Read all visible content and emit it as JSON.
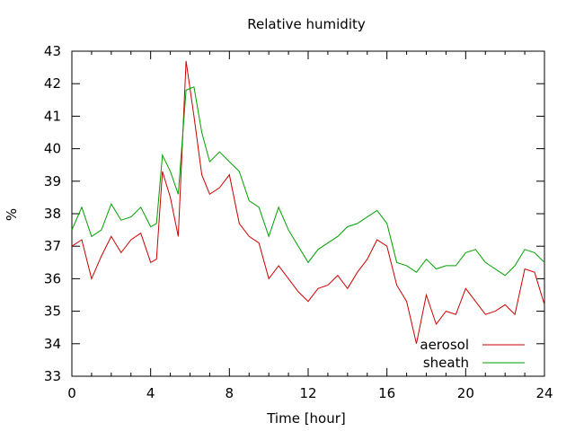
{
  "chart_data": {
    "type": "line",
    "title": "Relative humidity",
    "xlabel": "Time [hour]",
    "ylabel": "%",
    "xlim": [
      0,
      24
    ],
    "ylim": [
      33,
      43
    ],
    "x_ticks": [
      0,
      4,
      8,
      12,
      16,
      20,
      24
    ],
    "y_ticks": [
      33,
      34,
      35,
      36,
      37,
      38,
      39,
      40,
      41,
      42,
      43
    ],
    "grid": false,
    "legend_position": "bottom-right",
    "series": [
      {
        "name": "aerosol",
        "color": "#cc0000",
        "points": [
          [
            0,
            37.0
          ],
          [
            0.5,
            37.2
          ],
          [
            1,
            36.0
          ],
          [
            1.5,
            36.7
          ],
          [
            2,
            37.3
          ],
          [
            2.5,
            36.8
          ],
          [
            3,
            37.2
          ],
          [
            3.5,
            37.4
          ],
          [
            4,
            36.5
          ],
          [
            4.3,
            36.6
          ],
          [
            4.6,
            39.3
          ],
          [
            5,
            38.5
          ],
          [
            5.4,
            37.3
          ],
          [
            5.8,
            42.7
          ],
          [
            6.2,
            41.0
          ],
          [
            6.6,
            39.2
          ],
          [
            7,
            38.6
          ],
          [
            7.5,
            38.8
          ],
          [
            8,
            39.2
          ],
          [
            8.5,
            37.7
          ],
          [
            9,
            37.3
          ],
          [
            9.5,
            37.1
          ],
          [
            10,
            36.0
          ],
          [
            10.5,
            36.4
          ],
          [
            11,
            36.0
          ],
          [
            11.5,
            35.6
          ],
          [
            12,
            35.3
          ],
          [
            12.5,
            35.7
          ],
          [
            13,
            35.8
          ],
          [
            13.5,
            36.1
          ],
          [
            14,
            35.7
          ],
          [
            14.5,
            36.2
          ],
          [
            15,
            36.6
          ],
          [
            15.5,
            37.2
          ],
          [
            16,
            37.0
          ],
          [
            16.5,
            35.8
          ],
          [
            17,
            35.3
          ],
          [
            17.5,
            34.0
          ],
          [
            18,
            35.5
          ],
          [
            18.5,
            34.6
          ],
          [
            19,
            35.0
          ],
          [
            19.5,
            34.9
          ],
          [
            20,
            35.7
          ],
          [
            20.5,
            35.3
          ],
          [
            21,
            34.9
          ],
          [
            21.5,
            35.0
          ],
          [
            22,
            35.2
          ],
          [
            22.5,
            34.9
          ],
          [
            23,
            36.3
          ],
          [
            23.5,
            36.2
          ],
          [
            24,
            35.2
          ]
        ]
      },
      {
        "name": "sheath",
        "color": "#00a000",
        "points": [
          [
            0,
            37.5
          ],
          [
            0.5,
            38.2
          ],
          [
            1,
            37.3
          ],
          [
            1.5,
            37.5
          ],
          [
            2,
            38.3
          ],
          [
            2.5,
            37.8
          ],
          [
            3,
            37.9
          ],
          [
            3.5,
            38.2
          ],
          [
            4,
            37.6
          ],
          [
            4.3,
            37.7
          ],
          [
            4.6,
            39.8
          ],
          [
            5,
            39.3
          ],
          [
            5.4,
            38.6
          ],
          [
            5.8,
            41.8
          ],
          [
            6.2,
            41.9
          ],
          [
            6.6,
            40.5
          ],
          [
            7,
            39.6
          ],
          [
            7.5,
            39.9
          ],
          [
            8,
            39.6
          ],
          [
            8.5,
            39.3
          ],
          [
            9,
            38.4
          ],
          [
            9.5,
            38.2
          ],
          [
            10,
            37.3
          ],
          [
            10.5,
            38.2
          ],
          [
            11,
            37.5
          ],
          [
            11.5,
            37.0
          ],
          [
            12,
            36.5
          ],
          [
            12.5,
            36.9
          ],
          [
            13,
            37.1
          ],
          [
            13.5,
            37.3
          ],
          [
            14,
            37.6
          ],
          [
            14.5,
            37.7
          ],
          [
            15,
            37.9
          ],
          [
            15.5,
            38.1
          ],
          [
            16,
            37.7
          ],
          [
            16.5,
            36.5
          ],
          [
            17,
            36.4
          ],
          [
            17.5,
            36.2
          ],
          [
            18,
            36.6
          ],
          [
            18.5,
            36.3
          ],
          [
            19,
            36.4
          ],
          [
            19.5,
            36.4
          ],
          [
            20,
            36.8
          ],
          [
            20.5,
            36.9
          ],
          [
            21,
            36.5
          ],
          [
            21.5,
            36.3
          ],
          [
            22,
            36.1
          ],
          [
            22.5,
            36.4
          ],
          [
            23,
            36.9
          ],
          [
            23.5,
            36.8
          ],
          [
            24,
            36.5
          ]
        ]
      }
    ]
  }
}
